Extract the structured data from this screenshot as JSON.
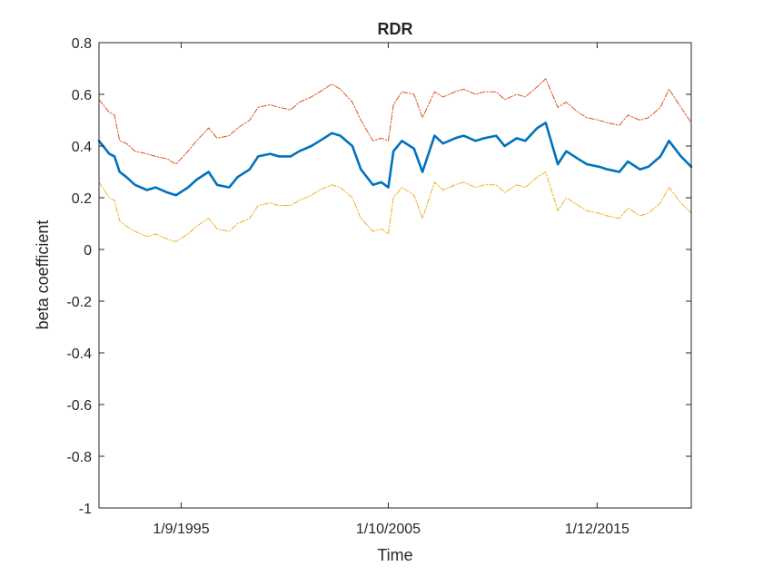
{
  "chart_data": {
    "type": "line",
    "title": "RDR",
    "xlabel": "Time",
    "ylabel": "beta coefficient",
    "ylim": [
      -1,
      0.8
    ],
    "yticks": [
      -1,
      -0.8,
      -0.6,
      -0.4,
      -0.2,
      0,
      0.2,
      0.4,
      0.6,
      0.8
    ],
    "ytick_labels": [
      "-1",
      "-0.8",
      "-0.6",
      "-0.4",
      "-0.2",
      "0",
      "0.2",
      "0.4",
      "0.6",
      "0.8"
    ],
    "xlim": [
      "1991-09-01",
      "2020-07-01"
    ],
    "xticks": [
      "1995-09-01",
      "2005-10-01",
      "2015-12-01"
    ],
    "xtick_labels": [
      "1/9/1995",
      "1/10/2005",
      "1/12/2015"
    ],
    "grid": false,
    "box": true,
    "x": [
      "1991-09-01",
      "1992-03-01",
      "1992-06-01",
      "1992-09-01",
      "1993-01-01",
      "1993-06-01",
      "1994-01-01",
      "1994-06-01",
      "1995-01-01",
      "1995-06-01",
      "1996-01-01",
      "1996-06-01",
      "1997-01-01",
      "1997-06-01",
      "1998-01-01",
      "1998-06-01",
      "1999-01-01",
      "1999-06-01",
      "2000-01-01",
      "2000-06-01",
      "2001-01-01",
      "2001-06-01",
      "2002-01-01",
      "2002-06-01",
      "2003-01-01",
      "2003-06-01",
      "2004-01-01",
      "2004-06-01",
      "2005-01-01",
      "2005-06-01",
      "2005-10-01",
      "2006-01-01",
      "2006-06-01",
      "2007-01-01",
      "2007-06-01",
      "2008-01-01",
      "2008-06-01",
      "2009-01-01",
      "2009-06-01",
      "2010-01-01",
      "2010-06-01",
      "2011-01-01",
      "2011-06-01",
      "2012-01-01",
      "2012-06-01",
      "2013-01-01",
      "2013-06-01",
      "2014-01-01",
      "2014-06-01",
      "2015-01-01",
      "2015-06-01",
      "2016-01-01",
      "2016-06-01",
      "2017-01-01",
      "2017-06-01",
      "2018-01-01",
      "2018-06-01",
      "2019-01-01",
      "2019-06-01",
      "2020-01-01",
      "2020-07-01"
    ],
    "series": [
      {
        "role": "estimate",
        "color": "#0072BD",
        "style": "solid",
        "values": [
          0.42,
          0.37,
          0.36,
          0.3,
          0.28,
          0.25,
          0.23,
          0.24,
          0.22,
          0.21,
          0.24,
          0.27,
          0.3,
          0.25,
          0.24,
          0.28,
          0.31,
          0.36,
          0.37,
          0.36,
          0.36,
          0.38,
          0.4,
          0.42,
          0.45,
          0.44,
          0.4,
          0.31,
          0.25,
          0.26,
          0.24,
          0.38,
          0.42,
          0.39,
          0.3,
          0.44,
          0.41,
          0.43,
          0.44,
          0.42,
          0.43,
          0.44,
          0.4,
          0.43,
          0.42,
          0.47,
          0.49,
          0.33,
          0.38,
          0.35,
          0.33,
          0.32,
          0.31,
          0.3,
          0.34,
          0.31,
          0.32,
          0.36,
          0.42,
          0.36,
          0.32
        ]
      },
      {
        "role": "upper-bound",
        "color": "#D95319",
        "style": "dash-dot",
        "values": [
          0.58,
          0.53,
          0.52,
          0.42,
          0.41,
          0.38,
          0.37,
          0.36,
          0.35,
          0.33,
          0.38,
          0.42,
          0.47,
          0.43,
          0.44,
          0.47,
          0.5,
          0.55,
          0.56,
          0.55,
          0.54,
          0.57,
          0.59,
          0.61,
          0.64,
          0.62,
          0.57,
          0.5,
          0.42,
          0.43,
          0.42,
          0.56,
          0.61,
          0.6,
          0.51,
          0.61,
          0.59,
          0.61,
          0.62,
          0.6,
          0.61,
          0.61,
          0.58,
          0.6,
          0.59,
          0.63,
          0.66,
          0.55,
          0.57,
          0.53,
          0.51,
          0.5,
          0.49,
          0.48,
          0.52,
          0.5,
          0.51,
          0.55,
          0.62,
          0.55,
          0.49
        ]
      },
      {
        "role": "lower-bound",
        "color": "#EDB120",
        "style": "dash-dot",
        "values": [
          0.26,
          0.2,
          0.19,
          0.11,
          0.09,
          0.07,
          0.05,
          0.06,
          0.04,
          0.03,
          0.06,
          0.09,
          0.12,
          0.08,
          0.07,
          0.1,
          0.12,
          0.17,
          0.18,
          0.17,
          0.17,
          0.19,
          0.21,
          0.23,
          0.25,
          0.24,
          0.2,
          0.12,
          0.07,
          0.08,
          0.06,
          0.2,
          0.24,
          0.21,
          0.12,
          0.26,
          0.23,
          0.25,
          0.26,
          0.24,
          0.25,
          0.25,
          0.22,
          0.25,
          0.24,
          0.28,
          0.3,
          0.15,
          0.2,
          0.17,
          0.15,
          0.14,
          0.13,
          0.12,
          0.16,
          0.13,
          0.14,
          0.18,
          0.24,
          0.18,
          0.14
        ]
      }
    ]
  }
}
